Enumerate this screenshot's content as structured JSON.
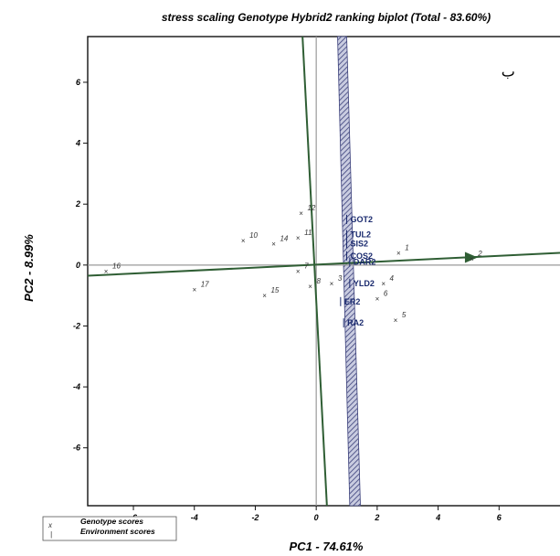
{
  "chart_data": {
    "type": "scatter",
    "title": "stress scaling Genotype Hybrid2 ranking biplot (Total - 83.60%)",
    "xlabel": "PC1 - 74.61%",
    "ylabel": "PC2 - 8.99%",
    "xlim": [
      -7.5,
      8
    ],
    "ylim": [
      -7.9,
      7.5
    ],
    "xticks": [
      -6,
      -4,
      -2,
      0,
      2,
      4,
      6
    ],
    "yticks": [
      -6,
      -4,
      -2,
      0,
      2,
      4,
      6
    ],
    "grid": false,
    "annotation": "ب",
    "legend": {
      "position": "bottom-left",
      "entries": [
        {
          "marker": "x",
          "label": "Genotype scores"
        },
        {
          "marker": "|",
          "label": "Environment scores"
        }
      ]
    },
    "genotypes": [
      {
        "label": "1",
        "x": 2.7,
        "y": 0.4
      },
      {
        "label": "2",
        "x": 5.1,
        "y": 0.2
      },
      {
        "label": "3",
        "x": 0.5,
        "y": -0.6
      },
      {
        "label": "4",
        "x": 2.2,
        "y": -0.6
      },
      {
        "label": "5",
        "x": 2.6,
        "y": -1.8
      },
      {
        "label": "6",
        "x": 2.0,
        "y": -1.1
      },
      {
        "label": "7",
        "x": -0.6,
        "y": -0.2
      },
      {
        "label": "8",
        "x": -0.2,
        "y": -0.7
      },
      {
        "label": "10",
        "x": -2.4,
        "y": 0.8
      },
      {
        "label": "11",
        "x": -0.6,
        "y": 0.9
      },
      {
        "label": "12",
        "x": -0.5,
        "y": 1.7
      },
      {
        "label": "14",
        "x": -1.4,
        "y": 0.7
      },
      {
        "label": "15",
        "x": -1.7,
        "y": -1.0
      },
      {
        "label": "16",
        "x": -6.9,
        "y": -0.2
      },
      {
        "label": "17",
        "x": -4.0,
        "y": -0.8
      }
    ],
    "environments": [
      {
        "label": "GOT2",
        "x": 1.0,
        "y": 1.5
      },
      {
        "label": "TUL2",
        "x": 1.0,
        "y": 1.0
      },
      {
        "label": "SIS2",
        "x": 1.0,
        "y": 0.7
      },
      {
        "label": "COS2",
        "x": 1.0,
        "y": 0.3
      },
      {
        "label": "DAR2",
        "x": 1.1,
        "y": 0.1
      },
      {
        "label": "YLD2",
        "x": 1.1,
        "y": -0.6
      },
      {
        "label": "ER2",
        "x": 0.8,
        "y": -1.2
      },
      {
        "label": "RA2",
        "x": 0.9,
        "y": -1.9
      }
    ]
  }
}
